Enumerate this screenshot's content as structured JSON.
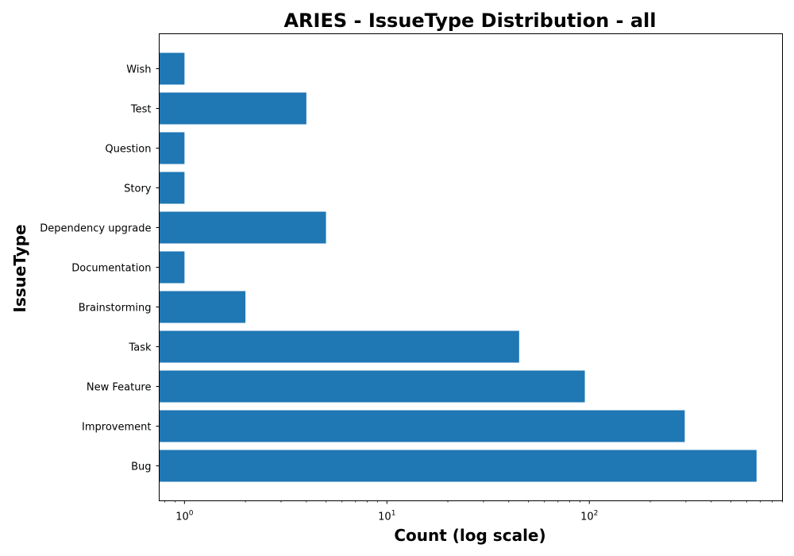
{
  "chart_data": {
    "type": "bar",
    "orientation": "horizontal",
    "title": "ARIES - IssueType Distribution - all",
    "xlabel": "Count (log scale)",
    "ylabel": "IssueType",
    "x_scale": "log",
    "xlim": [
      0.75,
      900
    ],
    "categories": [
      "Bug",
      "Improvement",
      "New Feature",
      "Task",
      "Brainstorming",
      "Documentation",
      "Dependency upgrade",
      "Story",
      "Question",
      "Test",
      "Wish"
    ],
    "values": [
      670,
      296,
      95,
      45,
      2,
      1,
      5,
      1,
      1,
      4,
      1
    ],
    "x_ticks": [
      {
        "value": 1,
        "base": "10",
        "exp": "0"
      },
      {
        "value": 10,
        "base": "10",
        "exp": "1"
      },
      {
        "value": 100,
        "base": "10",
        "exp": "2"
      }
    ],
    "bar_color": "#1f77b4",
    "grid": false,
    "legend": "none"
  }
}
